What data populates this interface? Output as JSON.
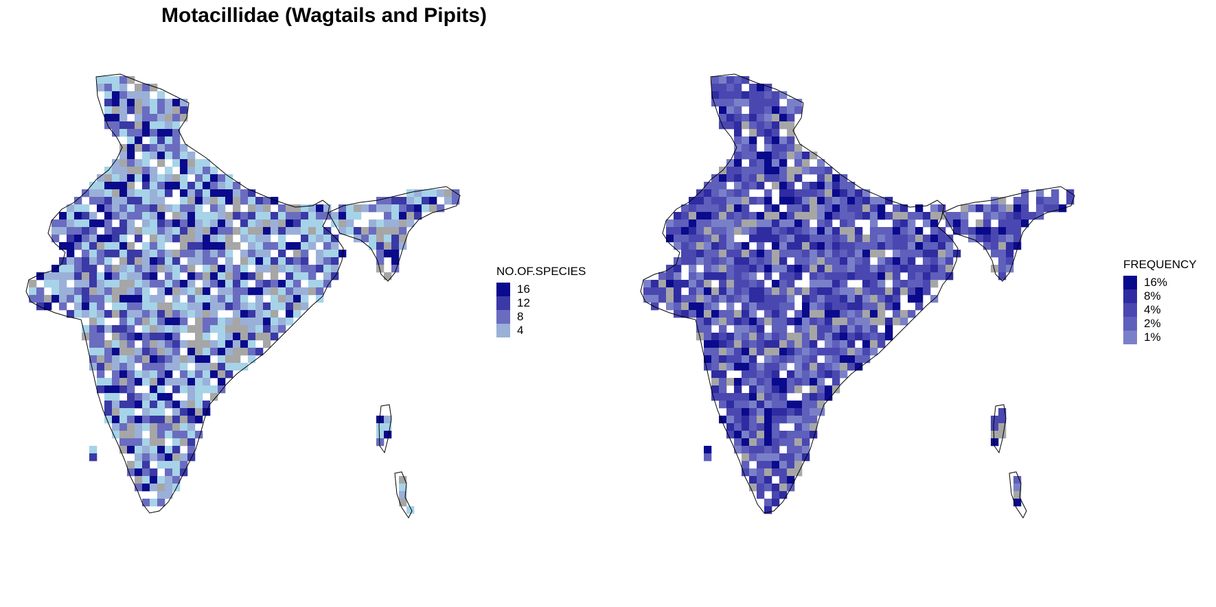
{
  "title": "Motacillidae (Wagtails and Pipits)",
  "colors": {
    "na": "#a6a6a6",
    "lightest": "#a6d3e8",
    "boundary": "#000000"
  },
  "left_map": {
    "legend": {
      "title": "NO.OF.SPECIES",
      "entries": [
        {
          "label": "16",
          "color": "#0a0a8c"
        },
        {
          "label": "12",
          "color": "#3a39a6"
        },
        {
          "label": "8",
          "color": "#6a6cc0"
        },
        {
          "label": "4",
          "color": "#9ab0d8"
        }
      ]
    }
  },
  "right_map": {
    "legend": {
      "title": "FREQUENCY",
      "entries": [
        {
          "label": "16%",
          "color": "#0a0a8c"
        },
        {
          "label": "8%",
          "color": "#2e2ca0"
        },
        {
          "label": "4%",
          "color": "#4a48b0"
        },
        {
          "label": "2%",
          "color": "#5f5fbc"
        },
        {
          "label": "1%",
          "color": "#7a80c8"
        }
      ]
    }
  }
}
